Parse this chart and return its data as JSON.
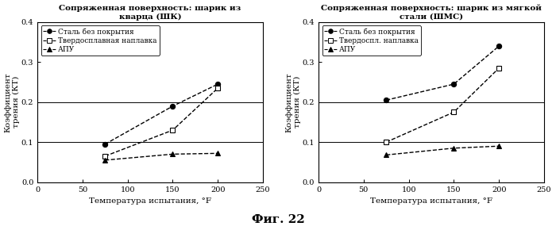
{
  "chart1": {
    "title": "Сопряженная поверхность: шарик из\nкварца (ШК)",
    "series": [
      {
        "label": "Сталь без покрытия",
        "marker": "o",
        "marker_filled": true,
        "x": [
          75,
          150,
          200
        ],
        "y": [
          0.095,
          0.19,
          0.245
        ]
      },
      {
        "label": "Твердосплавная наплавка",
        "marker": "s",
        "marker_filled": false,
        "x": [
          75,
          150,
          200
        ],
        "y": [
          0.065,
          0.13,
          0.235
        ]
      },
      {
        "label": "АПУ",
        "marker": "^",
        "marker_filled": true,
        "x": [
          75,
          150,
          200
        ],
        "y": [
          0.055,
          0.07,
          0.072
        ]
      }
    ],
    "xlabel": "Температура испытания, °F",
    "ylabel": "Коэффициент\nтрения (КТ)",
    "xlim": [
      0,
      250
    ],
    "ylim": [
      0,
      0.4
    ],
    "yticks": [
      0,
      0.1,
      0.2,
      0.3,
      0.4
    ],
    "xticks": [
      0,
      50,
      100,
      150,
      200,
      250
    ],
    "hlines": [
      0.1,
      0.2
    ]
  },
  "chart2": {
    "title": "Сопряженная поверхность: шарик из мягкой\nстали (ШМС)",
    "series": [
      {
        "label": "Сталь без покрытия",
        "marker": "o",
        "marker_filled": true,
        "x": [
          75,
          150,
          200
        ],
        "y": [
          0.205,
          0.245,
          0.34
        ]
      },
      {
        "label": "Твердоспл. наплавка",
        "marker": "s",
        "marker_filled": false,
        "x": [
          75,
          150,
          200
        ],
        "y": [
          0.1,
          0.175,
          0.285
        ]
      },
      {
        "label": "АПУ",
        "marker": "^",
        "marker_filled": true,
        "x": [
          75,
          150,
          200
        ],
        "y": [
          0.068,
          0.085,
          0.09
        ]
      }
    ],
    "xlabel": "Температура испытания, °F",
    "ylabel": "Коэффициент\nтрения (КТ)",
    "xlim": [
      0,
      250
    ],
    "ylim": [
      0,
      0.4
    ],
    "yticks": [
      0,
      0.1,
      0.2,
      0.3,
      0.4
    ],
    "xticks": [
      0,
      50,
      100,
      150,
      200,
      250
    ],
    "hlines": [
      0.1,
      0.2
    ]
  },
  "fig_label": "Фиг. 22",
  "background_color": "#ffffff"
}
